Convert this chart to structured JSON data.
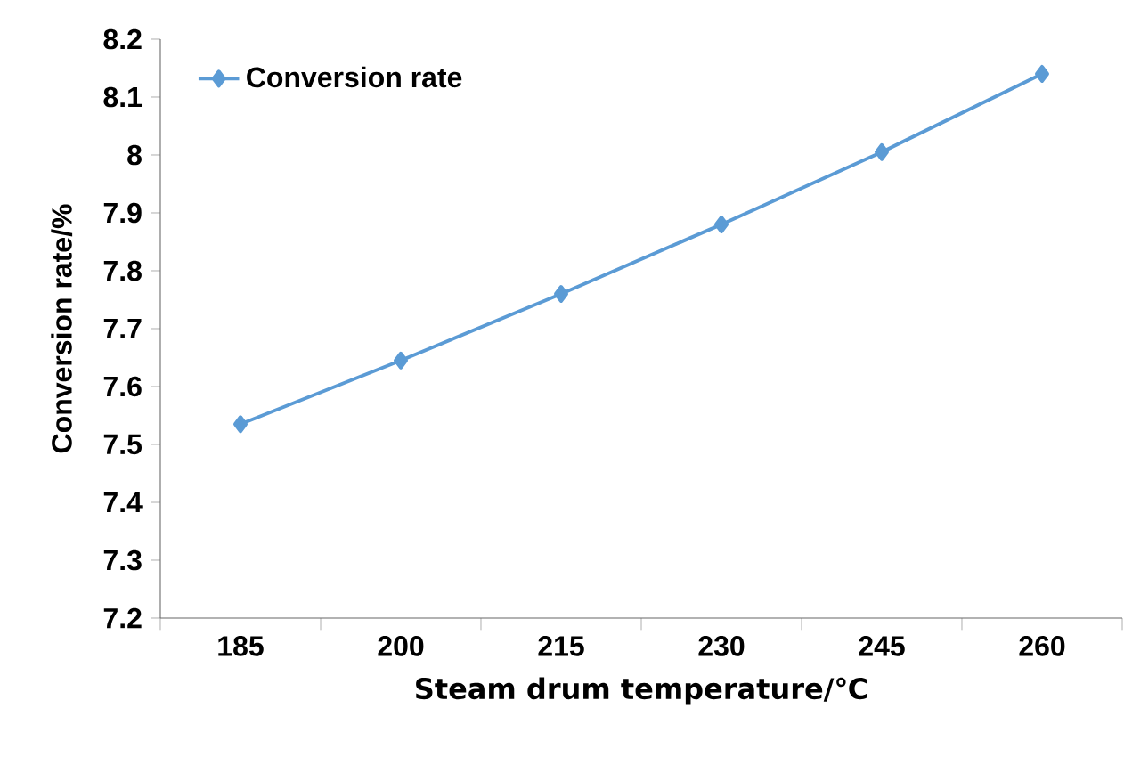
{
  "chart_data": {
    "type": "line",
    "xlabel": "Steam drum temperature/℃",
    "ylabel": "Conversion rate/%",
    "categories": [
      "185",
      "200",
      "215",
      "230",
      "245",
      "260"
    ],
    "series": [
      {
        "name": "Conversion rate",
        "color": "#5b9bd5",
        "values": [
          7.535,
          7.645,
          7.76,
          7.88,
          8.005,
          8.14
        ]
      }
    ],
    "ylim": [
      7.2,
      8.2
    ],
    "yticks": [
      7.2,
      7.3,
      7.4,
      7.5,
      7.6,
      7.7,
      7.8,
      7.9,
      8,
      8.1,
      8.2
    ],
    "legend": "top left",
    "marker": "diamond",
    "line_style": "solid",
    "grid": false
  }
}
